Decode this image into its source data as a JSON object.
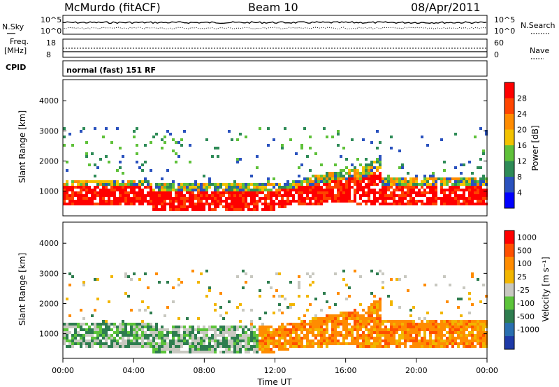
{
  "header": {
    "station": "McMurdo (fitACF)",
    "beam": "Beam 10",
    "date": "08/Apr/2011"
  },
  "status_panels": {
    "nsky_label": "N.Sky",
    "nsky_ticks": [
      "10^5",
      "10^0"
    ],
    "nsearch_label": "N.Search",
    "nsearch_ticks": [
      "10^5",
      "10^0"
    ],
    "freq_label_line1": "Freq.",
    "freq_label_line2": "[MHz]",
    "freq_ticks": [
      "18",
      "8"
    ],
    "nave_label": "Nave",
    "nave_ticks": [
      "60",
      "0"
    ],
    "cpid_label": "CPID",
    "cpid_value": "normal (fast) 151 RF"
  },
  "chart_data": [
    {
      "type": "heatmap",
      "name": "power",
      "ylabel": "Slant Range [km]",
      "yticks": [
        "1000",
        "2000",
        "3000",
        "4000"
      ],
      "ylim": [
        180,
        4700
      ],
      "xlim_hours": [
        0,
        24
      ],
      "colorbar_label": "Power [dB]",
      "colorbar_ticks": [
        "4",
        "8",
        "12",
        "16",
        "20",
        "24",
        "28"
      ],
      "colorbar_colors": [
        "#0000ff",
        "#2a52be",
        "#2e8b57",
        "#5fc13a",
        "#f2c200",
        "#ff8c00",
        "#ff4500",
        "#ff0000"
      ]
    },
    {
      "type": "heatmap",
      "name": "velocity",
      "ylabel": "Slant Range [km]",
      "yticks": [
        "1000",
        "2000",
        "3000",
        "4000"
      ],
      "ylim": [
        180,
        4700
      ],
      "xlim_hours": [
        0,
        24
      ],
      "colorbar_label": "Velocity [m s⁻¹]",
      "colorbar_ticks": [
        "1000",
        "500",
        "100",
        "25",
        "-25",
        "-100",
        "-500",
        "-1000"
      ],
      "colorbar_colors": [
        "#1e3aa8",
        "#2a6fb0",
        "#2e7d4f",
        "#5cc43a",
        "#c8c8c0",
        "#f2b600",
        "#ff8c00",
        "#ff5000",
        "#ff0000"
      ]
    }
  ],
  "xaxis": {
    "ticks": [
      "00:00",
      "04:00",
      "08:00",
      "12:00",
      "16:00",
      "20:00",
      "00:00"
    ],
    "label": "Time UT"
  }
}
